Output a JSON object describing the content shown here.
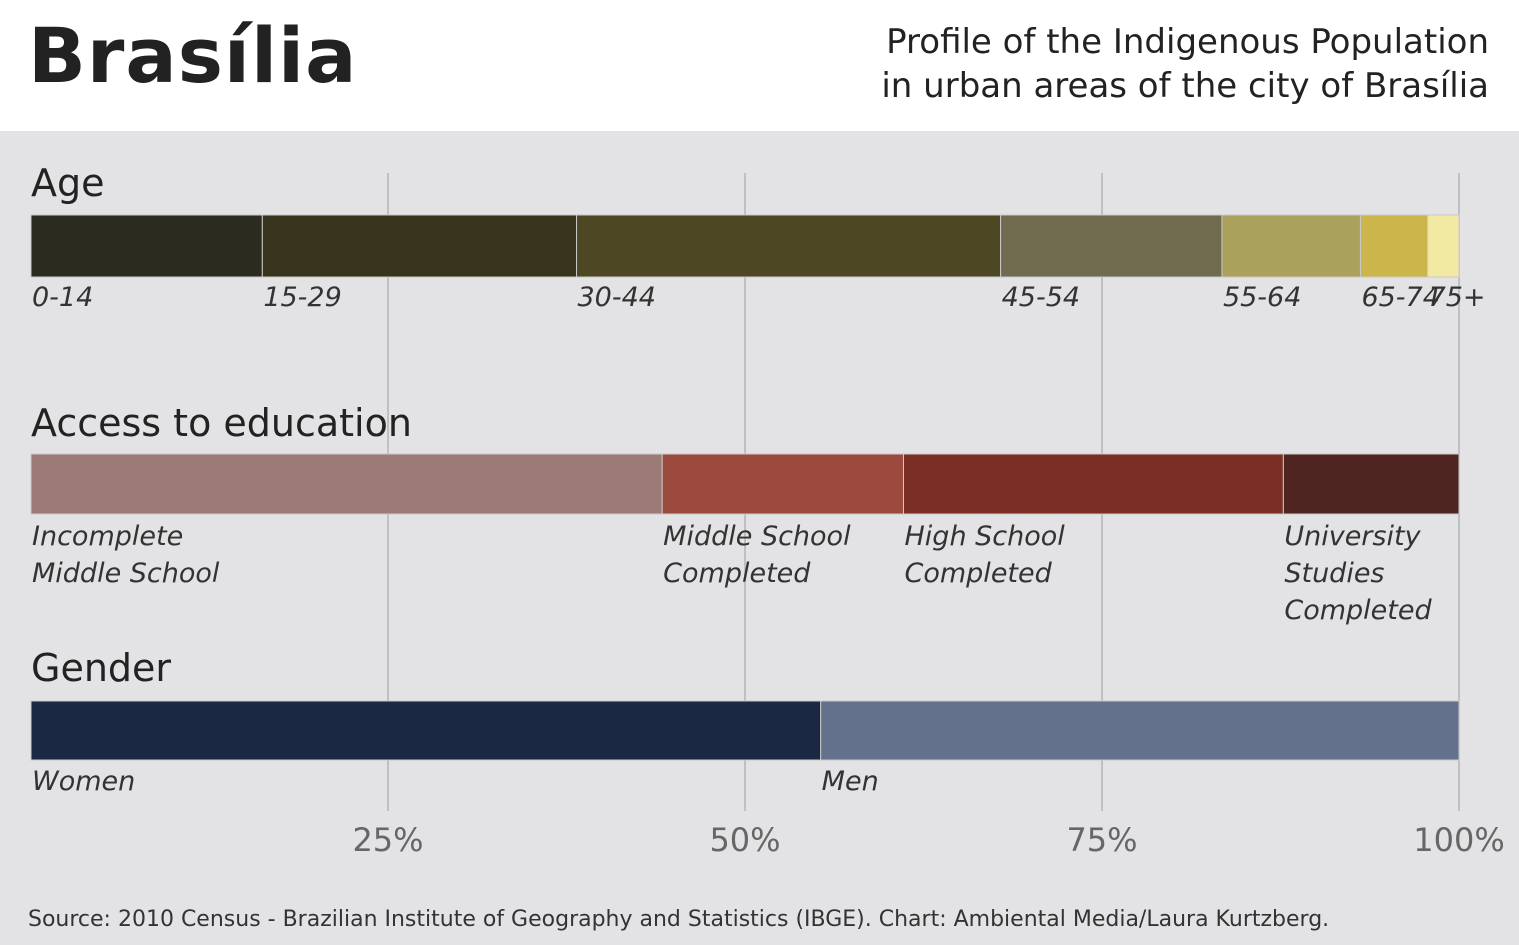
{
  "header": {
    "title": "Brasília",
    "subtitle_lines": [
      "Profile of the Indigenous Population",
      "in urban areas of the city of Brasília"
    ]
  },
  "chart_data": {
    "type": "bar",
    "orientation": "horizontal",
    "stacked": "100%",
    "xlim": [
      0,
      100
    ],
    "ticks": [
      {
        "value": 25,
        "label": "25%"
      },
      {
        "value": 50,
        "label": "50%"
      },
      {
        "value": 75,
        "label": "75%"
      },
      {
        "value": 100,
        "label": "100%"
      }
    ],
    "grid": "vertical",
    "groups": [
      {
        "name": "Age",
        "segments": [
          {
            "label": "0-14",
            "value": 16.2,
            "color": "#2b2b20"
          },
          {
            "label": "15-29",
            "value": 22.0,
            "color": "#38331c"
          },
          {
            "label": "30-44",
            "value": 29.7,
            "color": "#4d4724"
          },
          {
            "label": "45-54",
            "value": 15.5,
            "color": "#706b4e"
          },
          {
            "label": "55-64",
            "value": 9.7,
            "color": "#aaa15d"
          },
          {
            "label": "65-74",
            "value": 4.7,
            "color": "#ccb64c"
          },
          {
            "label": "75+",
            "value": 2.2,
            "color": "#f2e9a2"
          }
        ]
      },
      {
        "name": "Access to education",
        "segments": [
          {
            "lines": [
              "Incomplete",
              "Middle School"
            ],
            "value": 44.2,
            "color": "#9c7b76"
          },
          {
            "lines": [
              "Middle School",
              "Completed"
            ],
            "value": 16.9,
            "color": "#9d4a3e"
          },
          {
            "lines": [
              "High School",
              "Completed"
            ],
            "value": 26.6,
            "color": "#7b2e24"
          },
          {
            "lines": [
              "University",
              "Studies",
              "Completed"
            ],
            "value": 12.3,
            "color": "#4e2520"
          }
        ]
      },
      {
        "name": "Gender",
        "segments": [
          {
            "label": "Women",
            "value": 55.3,
            "color": "#1b2843"
          },
          {
            "label": "Men",
            "value": 44.7,
            "color": "#63718c"
          }
        ]
      }
    ],
    "source": "Source: 2010 Census - Brazilian Institute of Geography and Statistics (IBGE). Chart: Ambiental Media/Laura Kurtzberg."
  }
}
